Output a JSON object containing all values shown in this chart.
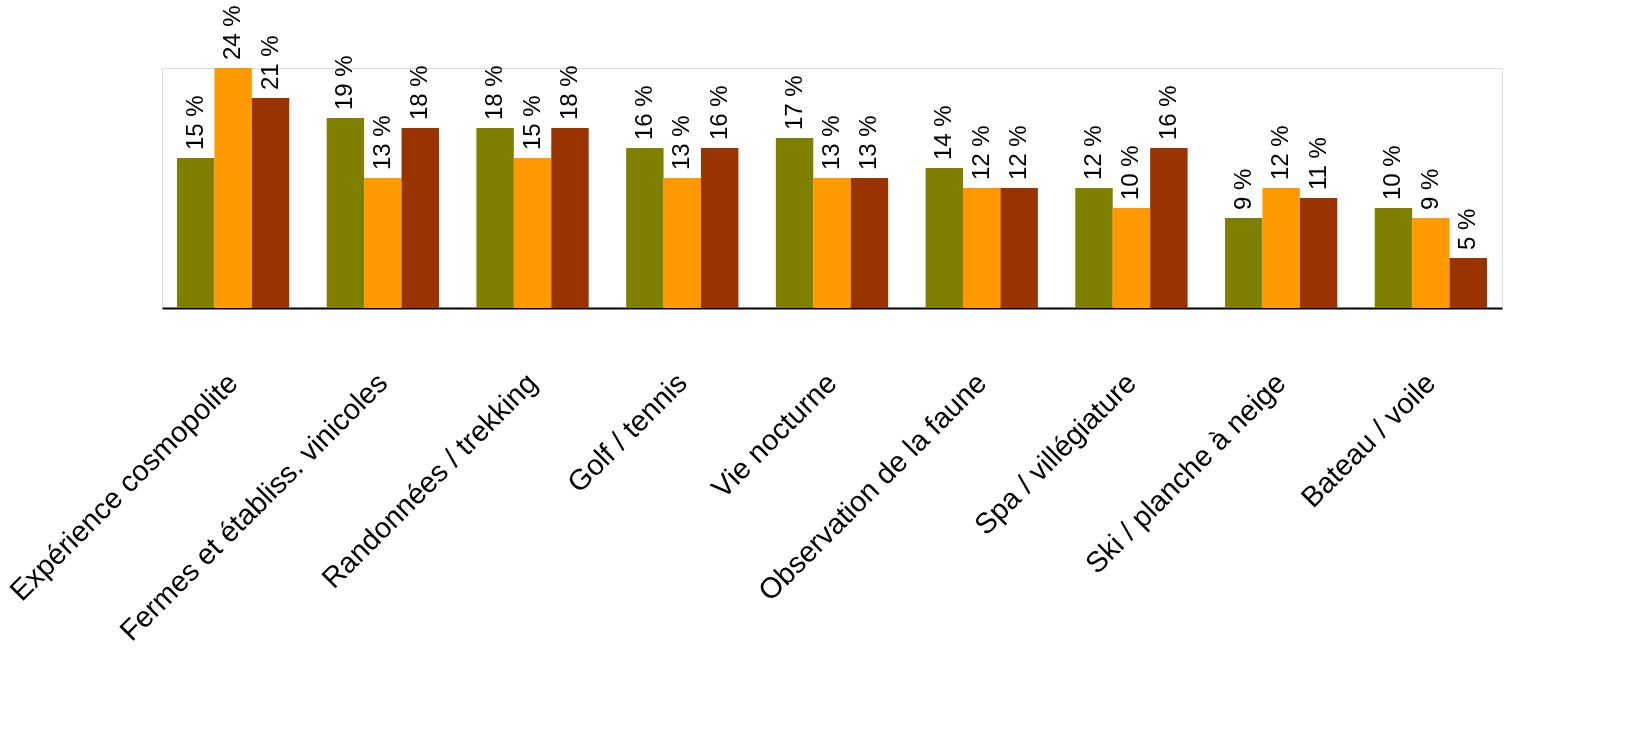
{
  "chart_data": {
    "type": "bar",
    "categories": [
      "Expérience cosmopolite",
      "Fermes et établiss. vinicoles",
      "Randonnées / trekking",
      "Golf / tennis",
      "Vie nocturne",
      "Observation de la faune",
      "Spa / villégiature",
      "Ski / planche à neige",
      "Bateau / voile"
    ],
    "series": [
      {
        "color": "#808000",
        "values": [
          15,
          19,
          18,
          16,
          17,
          14,
          12,
          9,
          10
        ],
        "value_labels": [
          "15 %",
          "19 %",
          "18 %",
          "16 %",
          "17 %",
          "14 %",
          "12 %",
          "9 %",
          "10 %"
        ]
      },
      {
        "color": "#ff9900",
        "values": [
          24,
          13,
          15,
          13,
          13,
          12,
          10,
          12,
          9
        ],
        "value_labels": [
          "24 %",
          "13 %",
          "15 %",
          "13 %",
          "13 %",
          "12 %",
          "10 %",
          "12 %",
          "9 %"
        ]
      },
      {
        "color": "#993300",
        "values": [
          21,
          18,
          18,
          16,
          13,
          12,
          16,
          11,
          5
        ],
        "value_labels": [
          "21 %",
          "18 %",
          "18 %",
          "16 %",
          "13 %",
          "12 %",
          "16 %",
          "11 %",
          "5 %"
        ]
      }
    ],
    "grid": false,
    "legend": false
  }
}
